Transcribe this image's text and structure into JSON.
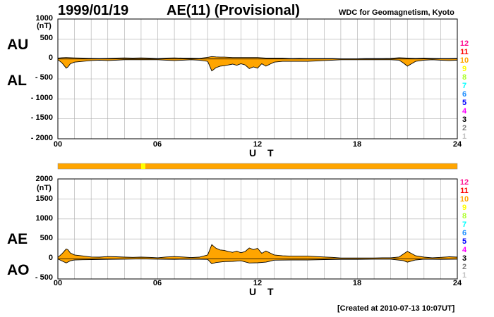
{
  "header": {
    "date": "1999/01/19",
    "title": "AE(11) (Provisional)",
    "source": "WDC for Geomagnetism, Kyoto"
  },
  "footer": {
    "created": "[Created at 2010-07-13 10:07UT]"
  },
  "colors": {
    "fill": "#ffa500",
    "level_colors": [
      "#ff1493",
      "#ff0000",
      "#ffa500",
      "#ffff00",
      "#adff2f",
      "#00ffff",
      "#1e90ff",
      "#0000ff",
      "#ff00ff",
      "#000000",
      "#808080",
      "#c0c0c0"
    ]
  },
  "chart_data": [
    {
      "type": "area",
      "panel": "AU/AL",
      "left_labels": [
        "AU",
        "AL"
      ],
      "unit_label": "(nT)",
      "y_tick_labels": [
        "1000",
        "500",
        "0",
        "- 500",
        "- 1000",
        "- 1500",
        "- 2000"
      ],
      "y_ticks": [
        1000,
        500,
        0,
        -500,
        -1000,
        -1500,
        -2000
      ],
      "ylim": [
        -2000,
        1000
      ],
      "x_tick_labels": [
        "00",
        "06",
        "12",
        "18",
        "24"
      ],
      "x_ticks": [
        0,
        6,
        12,
        18,
        24
      ],
      "xlim": [
        0,
        24
      ],
      "xlabel": "U T",
      "grid": true,
      "level_labels": [
        "12",
        "11",
        "10",
        "9",
        "8",
        "7",
        "6",
        "5",
        "4",
        "3",
        "2",
        "1"
      ],
      "series": [
        {
          "name": "AU",
          "x": [
            0,
            0.25,
            0.5,
            0.75,
            1,
            1.5,
            2,
            2.5,
            3,
            3.5,
            4,
            4.5,
            5,
            5.5,
            6,
            6.5,
            7,
            7.5,
            8,
            8.5,
            9,
            9.25,
            9.5,
            9.75,
            10,
            10.5,
            11,
            11.5,
            12,
            12.5,
            13,
            13.5,
            14,
            14.5,
            15,
            15.5,
            16,
            16.5,
            17,
            17.5,
            18,
            18.5,
            19,
            19.5,
            20,
            20.5,
            21,
            21.5,
            22,
            22.5,
            23,
            23.5,
            24
          ],
          "values": [
            20,
            30,
            35,
            30,
            25,
            20,
            15,
            10,
            15,
            20,
            25,
            20,
            25,
            20,
            10,
            20,
            25,
            20,
            20,
            15,
            40,
            60,
            50,
            45,
            45,
            35,
            35,
            35,
            35,
            20,
            20,
            20,
            10,
            15,
            10,
            10,
            10,
            10,
            5,
            5,
            5,
            10,
            10,
            10,
            15,
            30,
            20,
            15,
            20,
            15,
            10,
            10,
            15
          ]
        },
        {
          "name": "AL",
          "x": [
            0,
            0.25,
            0.5,
            0.6,
            0.75,
            1,
            1.5,
            2,
            2.5,
            3,
            3.5,
            4,
            4.5,
            5,
            5.5,
            6,
            6.5,
            7,
            7.5,
            8,
            8.5,
            9,
            9.25,
            9.5,
            9.75,
            10,
            10.25,
            10.5,
            10.75,
            11,
            11.25,
            11.5,
            11.75,
            12,
            12.25,
            12.5,
            12.75,
            13,
            13.5,
            14,
            14.5,
            15,
            15.5,
            16,
            16.5,
            17,
            17.5,
            18,
            18.5,
            19,
            19.5,
            20,
            20.5,
            20.75,
            21,
            21.25,
            21.5,
            22,
            22.5,
            23,
            23.5,
            24
          ],
          "values": [
            -20,
            -100,
            -230,
            -200,
            -120,
            -80,
            -60,
            -40,
            -30,
            -40,
            -30,
            -20,
            -20,
            -20,
            -20,
            -20,
            -30,
            -40,
            -30,
            -20,
            -30,
            -60,
            -300,
            -220,
            -180,
            -170,
            -150,
            -130,
            -160,
            -120,
            -150,
            -240,
            -200,
            -230,
            -120,
            -180,
            -130,
            -80,
            -60,
            -60,
            -60,
            -60,
            -50,
            -40,
            -30,
            -20,
            -20,
            -20,
            -20,
            -20,
            -20,
            -20,
            -30,
            -100,
            -180,
            -120,
            -60,
            -30,
            -20,
            -30,
            -40,
            -30
          ]
        }
      ]
    },
    {
      "type": "area",
      "panel": "AE/AO",
      "left_labels": [
        "AE",
        "AO"
      ],
      "unit_label": "(nT)",
      "y_tick_labels": [
        "2000",
        "1500",
        "1000",
        "500",
        "0",
        "- 500"
      ],
      "y_ticks": [
        2000,
        1500,
        1000,
        500,
        0,
        -500
      ],
      "ylim": [
        -500,
        2000
      ],
      "x_tick_labels": [
        "00",
        "06",
        "12",
        "18",
        "24"
      ],
      "x_ticks": [
        0,
        6,
        12,
        18,
        24
      ],
      "xlim": [
        0,
        24
      ],
      "xlabel": "U T",
      "grid": true,
      "level_labels": [
        "12",
        "11",
        "10",
        "9",
        "8",
        "7",
        "6",
        "5",
        "4",
        "3",
        "2",
        "1"
      ],
      "series": [
        {
          "name": "AE",
          "x": [
            0,
            0.25,
            0.5,
            0.6,
            0.75,
            1,
            1.5,
            2,
            2.5,
            3,
            3.5,
            4,
            4.5,
            5,
            5.5,
            6,
            6.5,
            7,
            7.5,
            8,
            8.5,
            9,
            9.25,
            9.5,
            9.75,
            10,
            10.25,
            10.5,
            10.75,
            11,
            11.25,
            11.5,
            11.75,
            12,
            12.25,
            12.5,
            12.75,
            13,
            13.5,
            14,
            14.5,
            15,
            15.5,
            16,
            16.5,
            17,
            17.5,
            18,
            18.5,
            19,
            19.5,
            20,
            20.5,
            20.75,
            21,
            21.25,
            21.5,
            22,
            22.5,
            23,
            23.5,
            24
          ],
          "values": [
            40,
            130,
            250,
            230,
            150,
            100,
            75,
            50,
            45,
            60,
            55,
            45,
            40,
            45,
            40,
            30,
            50,
            60,
            50,
            35,
            45,
            100,
            360,
            270,
            225,
            215,
            185,
            165,
            195,
            155,
            185,
            275,
            235,
            265,
            140,
            200,
            150,
            100,
            80,
            70,
            70,
            70,
            60,
            50,
            40,
            25,
            25,
            25,
            25,
            25,
            30,
            30,
            50,
            120,
            190,
            135,
            80,
            45,
            30,
            40,
            55,
            45
          ]
        },
        {
          "name": "AO",
          "x": [
            0,
            0.5,
            0.75,
            1,
            1.5,
            2,
            3,
            4,
            5,
            6,
            7,
            8,
            9,
            9.25,
            9.5,
            10,
            10.5,
            11,
            11.5,
            12,
            12.5,
            13,
            14,
            15,
            16,
            17,
            18,
            19,
            20,
            20.75,
            21,
            21.5,
            22,
            23,
            24
          ],
          "values": [
            0,
            -100,
            -45,
            -25,
            -20,
            -15,
            -10,
            -5,
            0,
            -5,
            -10,
            -5,
            -10,
            -120,
            -90,
            -65,
            -60,
            -45,
            -100,
            -95,
            -80,
            -30,
            -25,
            -25,
            -15,
            -10,
            -10,
            -5,
            -5,
            -40,
            -80,
            -25,
            -5,
            -10,
            -5
          ]
        }
      ]
    }
  ]
}
